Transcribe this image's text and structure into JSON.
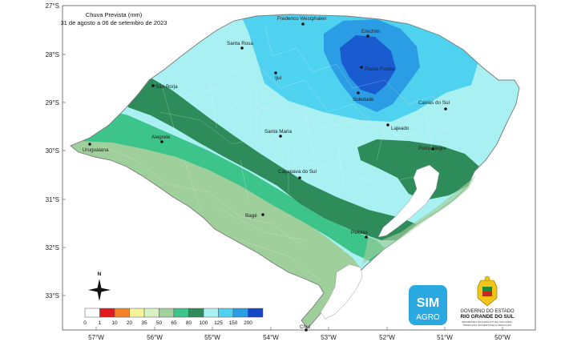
{
  "title": {
    "line1": "Chuva Prevista (mm)",
    "line2": "31 de agosto a 06 de setembro de 2023"
  },
  "axes": {
    "lat_labels": [
      "27°S",
      "28°S",
      "29°S",
      "30°S",
      "31°S",
      "32°S",
      "33°S"
    ],
    "lon_labels": [
      "57°W",
      "56°W",
      "55°W",
      "54°W",
      "53°W",
      "52°W",
      "51°W",
      "50°W"
    ]
  },
  "cities": [
    {
      "id": "frederico",
      "name": "Frederico Westphalen"
    },
    {
      "id": "erechim",
      "name": "Erechim"
    },
    {
      "id": "santa-rosa",
      "name": "Santa Rosa"
    },
    {
      "id": "passo-fundo",
      "name": "Passo Fundo"
    },
    {
      "id": "ijui",
      "name": "Ijuí"
    },
    {
      "id": "soledade",
      "name": "Soledade"
    },
    {
      "id": "sao-borja",
      "name": "São Borja"
    },
    {
      "id": "caxias",
      "name": "Caxias do Sul"
    },
    {
      "id": "lajeado",
      "name": "Lajeado"
    },
    {
      "id": "santa-maria",
      "name": "Santa Maria"
    },
    {
      "id": "alegrete",
      "name": "Alegrete"
    },
    {
      "id": "porto-alegre",
      "name": "Porto Alegre"
    },
    {
      "id": "uruguaiana",
      "name": "Uruguaiana"
    },
    {
      "id": "cacapava",
      "name": "Caçapava do Sul"
    },
    {
      "id": "bage",
      "name": "Bagé"
    },
    {
      "id": "pelotas",
      "name": "Pelotas"
    },
    {
      "id": "chui",
      "name": "Chuí"
    }
  ],
  "legend": {
    "classes": [
      {
        "label": "0",
        "color": "#ffffff"
      },
      {
        "label": "1",
        "color": "#e31a1c"
      },
      {
        "label": "10",
        "color": "#f4802a"
      },
      {
        "label": "20",
        "color": "#f7f39a"
      },
      {
        "label": "35",
        "color": "#d8f2c3"
      },
      {
        "label": "50",
        "color": "#9fcf9a"
      },
      {
        "label": "65",
        "color": "#3dc48a"
      },
      {
        "label": "80",
        "color": "#2e8b5a"
      },
      {
        "label": "100",
        "color": "#a8f0f2"
      },
      {
        "label": "125",
        "color": "#4fd2f0"
      },
      {
        "label": "150",
        "color": "#2b9de4"
      },
      {
        "label": "200",
        "color": "#1646c8"
      }
    ]
  },
  "compass": {
    "north_label": "N"
  },
  "logo": {
    "line1": "SIM",
    "line2": "AGRO"
  },
  "government": {
    "line1": "GOVERNO DO ESTADO",
    "line2": "RIO GRANDE DO SUL",
    "small1": "SECRETARIA DA AGRICULTURA, PECUÁRIA,",
    "small2": "PRODUÇÃO SUSTENTÁVEL E IRRIGAÇÃO"
  },
  "colors": {
    "c0": "#ffffff",
    "c1": "#e31a1c",
    "c10": "#f4802a",
    "c20": "#f7f39a",
    "c35": "#d8f2c3",
    "c50": "#9fcf9a",
    "c65": "#3dc48a",
    "c80": "#2e8b5a",
    "c100": "#a8f0f2",
    "c125": "#4fd2f0",
    "c150": "#2b9de4",
    "c200": "#1646c8"
  }
}
